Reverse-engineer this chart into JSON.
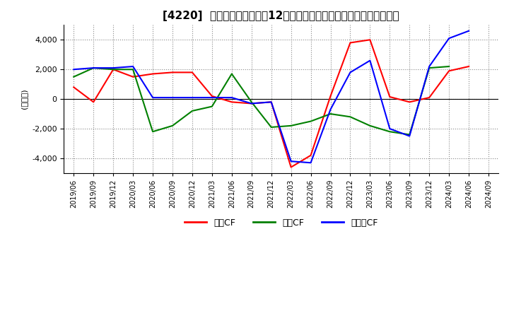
{
  "title": "[4220]  キャッシュフローの12か月移動合計の対前年同期増減額の推移",
  "ylabel": "(百万円)",
  "ylim": [
    -5000,
    5000
  ],
  "yticks": [
    -4000,
    -2000,
    0,
    2000,
    4000
  ],
  "legend_labels": [
    "営業CF",
    "投資CF",
    "フリーCF"
  ],
  "colors": {
    "operating": "#ff0000",
    "investing": "#008000",
    "free": "#0000ff"
  },
  "x_labels": [
    "2019/06",
    "2019/09",
    "2019/12",
    "2020/03",
    "2020/06",
    "2020/09",
    "2020/12",
    "2021/03",
    "2021/06",
    "2021/09",
    "2021/12",
    "2022/03",
    "2022/06",
    "2022/09",
    "2022/12",
    "2023/03",
    "2023/06",
    "2023/09",
    "2023/12",
    "2024/03",
    "2024/06",
    "2024/09"
  ],
  "operating_cf": [
    800,
    -200,
    2000,
    1500,
    1700,
    1800,
    1800,
    200,
    -200,
    -300,
    -200,
    -4600,
    -3800,
    200,
    3800,
    4000,
    150,
    -200,
    100,
    1900,
    2200,
    null
  ],
  "investing_cf": [
    1500,
    2100,
    2000,
    2000,
    -2200,
    -1800,
    -800,
    -500,
    1700,
    -200,
    -1900,
    -1800,
    -1500,
    -1000,
    -1200,
    -1800,
    -2200,
    -2400,
    2100,
    2200,
    null,
    null
  ],
  "free_cf": [
    2000,
    2100,
    2100,
    2200,
    100,
    100,
    100,
    100,
    100,
    -300,
    -200,
    -4200,
    -4300,
    -700,
    1800,
    2600,
    -2000,
    -2500,
    2200,
    4100,
    4600,
    null
  ]
}
